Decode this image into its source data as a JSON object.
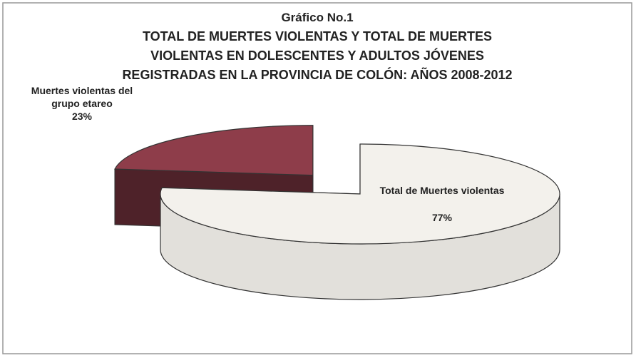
{
  "chart_data": {
    "type": "pie",
    "title": [
      "Gráfico No.1",
      "TOTAL DE MUERTES VIOLENTAS Y TOTAL DE MUERTES",
      "VIOLENTAS EN DOLESCENTES Y ADULTOS JÓVENES",
      "REGISTRADAS EN LA PROVINCIA DE COLÓN: AÑOS 2008-2012"
    ],
    "categories": [
      "Muertes violentas del grupo etareo",
      "Total de Muertes violentas"
    ],
    "values": [
      23,
      77
    ],
    "value_labels": [
      "23%",
      "77%"
    ],
    "colors": [
      "#8e3d4a",
      "#f3f1ec"
    ]
  }
}
